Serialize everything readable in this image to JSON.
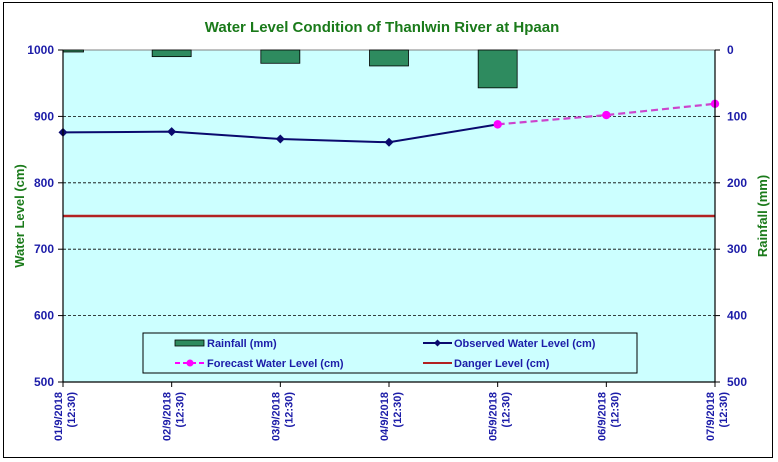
{
  "chart_data": {
    "type": "line",
    "title": "Water Level Condition of Thanlwin  River at  Hpaan",
    "xlabel": "",
    "ylabel": "Water Level (cm)",
    "y2label": "Rainfall (mm)",
    "ylim": [
      500,
      1000
    ],
    "y2lim": [
      0,
      500
    ],
    "y2_inverted": true,
    "yticks": [
      "1000",
      "900",
      "800",
      "700",
      "600",
      "500"
    ],
    "y2ticks": [
      "0",
      "100",
      "200",
      "300",
      "400",
      "500"
    ],
    "grid": "horizontal dashed",
    "categories": [
      [
        "01/9/2018",
        "(12:30)"
      ],
      [
        "02/9/2018",
        "(12:30)"
      ],
      [
        "03/9/2018",
        "(12:30)"
      ],
      [
        "04/9/2018",
        "(12:30)"
      ],
      [
        "05/9/2018",
        "(12:30)"
      ],
      [
        "06/9/2018",
        "(12:30)"
      ],
      [
        "07/9/2018",
        "(12:30)"
      ]
    ],
    "series": [
      {
        "name": "Rainfall (mm)",
        "type": "bar",
        "axis": "y2",
        "color": "#2e8b5f",
        "values": [
          3,
          10,
          20,
          24,
          57,
          null,
          null
        ]
      },
      {
        "name": "Observed Water Level (cm)",
        "type": "line",
        "axis": "y",
        "color": "#0a0a6e",
        "marker": "diamond",
        "values": [
          876,
          877,
          866,
          861,
          888,
          null,
          null
        ]
      },
      {
        "name": "Forecast Water Level (cm)",
        "type": "line",
        "axis": "y",
        "color": "#ff00ff",
        "marker": "circle",
        "dashed": true,
        "values": [
          null,
          null,
          null,
          null,
          888,
          902,
          919
        ]
      },
      {
        "name": "Danger Level (cm)",
        "type": "line",
        "axis": "y",
        "color": "#b22222",
        "values": [
          750,
          750,
          750,
          750,
          750,
          750,
          750
        ]
      }
    ],
    "legend": {
      "placement": "bottom-inside",
      "entries": [
        "Rainfall (mm)",
        "Observed Water Level (cm)",
        "Forecast Water Level (cm)",
        "Danger Level (cm)"
      ]
    },
    "plot_background": "#ccffff"
  }
}
